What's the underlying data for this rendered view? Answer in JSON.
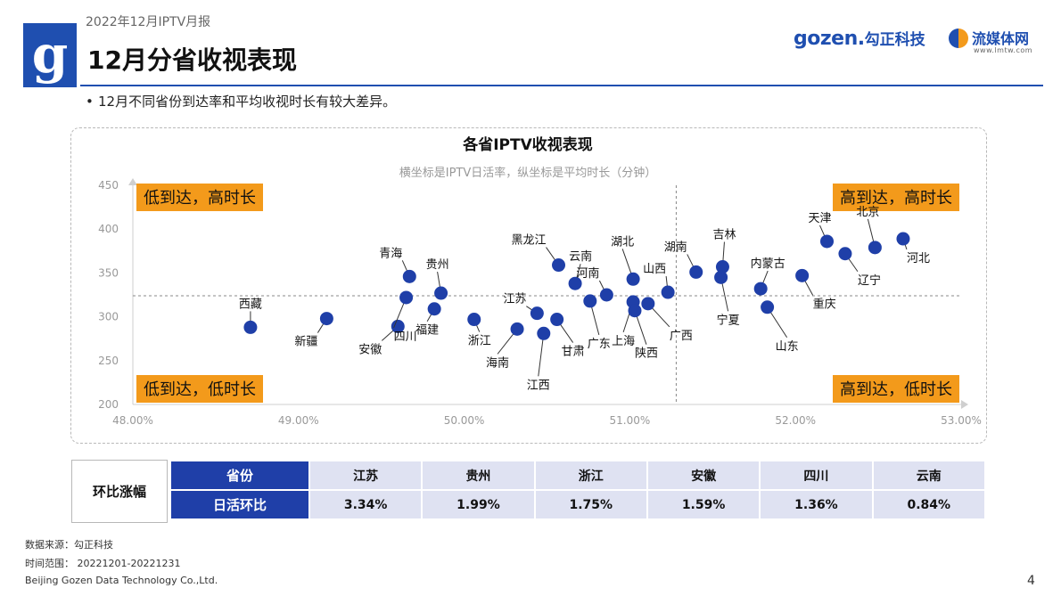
{
  "header": {
    "report_name": "2022年12月IPTV月报",
    "title": "12月分省收视表现",
    "logo_letter": "g",
    "brand1_latin": "gozen.",
    "brand1_cn": "勾正科技",
    "brand2_name": "流媒体网",
    "brand2_url": "www.lmtw.com"
  },
  "bullet": "12月不同省份到达率和平均收视时长有较大差异。",
  "chart_data": {
    "type": "scatter",
    "title": "各省IPTV收视表现",
    "subtitle": "横坐标是IPTV日活率，纵坐标是平均时长（分钟）",
    "xlabel": "",
    "ylabel": "",
    "xlim": [
      0.48,
      0.53
    ],
    "ylim": [
      200,
      450
    ],
    "xticks": [
      0.48,
      0.49,
      0.5,
      0.51,
      0.52,
      0.53
    ],
    "xtick_labels": [
      "48.00%",
      "49.00%",
      "50.00%",
      "51.00%",
      "52.00%",
      "53.00%"
    ],
    "yticks": [
      200,
      250,
      300,
      350,
      400,
      450
    ],
    "ytick_labels": [
      "200",
      "250",
      "300",
      "350",
      "400",
      "450"
    ],
    "x_divider": 0.5128,
    "y_divider": 324,
    "grid": false,
    "point_color": "#1f3fa8",
    "quadrant_color": "#f39a1b",
    "quadrants": {
      "top_left": "低到达，高时长",
      "top_right": "高到达，高时长",
      "bottom_left": "低到达，低时长",
      "bottom_right": "高到达，低时长"
    },
    "points": [
      {
        "name": "西藏",
        "x": 0.4871,
        "y": 288
      },
      {
        "name": "新疆",
        "x": 0.4917,
        "y": 298
      },
      {
        "name": "安徽",
        "x": 0.496,
        "y": 289
      },
      {
        "name": "青海",
        "x": 0.4967,
        "y": 346
      },
      {
        "name": "四川",
        "x": 0.4965,
        "y": 322
      },
      {
        "name": "福建",
        "x": 0.4982,
        "y": 309
      },
      {
        "name": "贵州",
        "x": 0.4986,
        "y": 327
      },
      {
        "name": "浙江",
        "x": 0.5006,
        "y": 297
      },
      {
        "name": "海南",
        "x": 0.5032,
        "y": 286
      },
      {
        "name": "江苏",
        "x": 0.5044,
        "y": 304
      },
      {
        "name": "江西",
        "x": 0.5048,
        "y": 281
      },
      {
        "name": "甘肃",
        "x": 0.5056,
        "y": 297
      },
      {
        "name": "黑龙江",
        "x": 0.5057,
        "y": 359
      },
      {
        "name": "云南",
        "x": 0.5067,
        "y": 338
      },
      {
        "name": "广东",
        "x": 0.5076,
        "y": 318
      },
      {
        "name": "河南",
        "x": 0.5086,
        "y": 325
      },
      {
        "name": "上海",
        "x": 0.5102,
        "y": 317
      },
      {
        "name": "湖北",
        "x": 0.5102,
        "y": 343
      },
      {
        "name": "陕西",
        "x": 0.5103,
        "y": 307
      },
      {
        "name": "广西",
        "x": 0.5111,
        "y": 315
      },
      {
        "name": "山西",
        "x": 0.5123,
        "y": 328
      },
      {
        "name": "湖南",
        "x": 0.514,
        "y": 351
      },
      {
        "name": "宁夏",
        "x": 0.5155,
        "y": 345
      },
      {
        "name": "吉林",
        "x": 0.5156,
        "y": 357
      },
      {
        "name": "内蒙古",
        "x": 0.5179,
        "y": 332
      },
      {
        "name": "山东",
        "x": 0.5183,
        "y": 311
      },
      {
        "name": "重庆",
        "x": 0.5204,
        "y": 347
      },
      {
        "name": "天津",
        "x": 0.5219,
        "y": 386
      },
      {
        "name": "辽宁",
        "x": 0.523,
        "y": 372
      },
      {
        "name": "北京",
        "x": 0.5248,
        "y": 379
      },
      {
        "name": "河北",
        "x": 0.5265,
        "y": 389
      }
    ]
  },
  "summary": {
    "label": "环比涨幅",
    "row1_header": "省份",
    "row2_header": "日活环比",
    "provinces": [
      "江苏",
      "贵州",
      "浙江",
      "安徽",
      "四川",
      "云南"
    ],
    "values": [
      "3.34%",
      "1.99%",
      "1.75%",
      "1.59%",
      "1.36%",
      "0.84%"
    ]
  },
  "footer": {
    "source": "数据来源：勾正科技",
    "period": "时间范围： 20221201-20221231",
    "company": "Beijing Gozen Data Technology Co.,Ltd.",
    "page": "4"
  }
}
